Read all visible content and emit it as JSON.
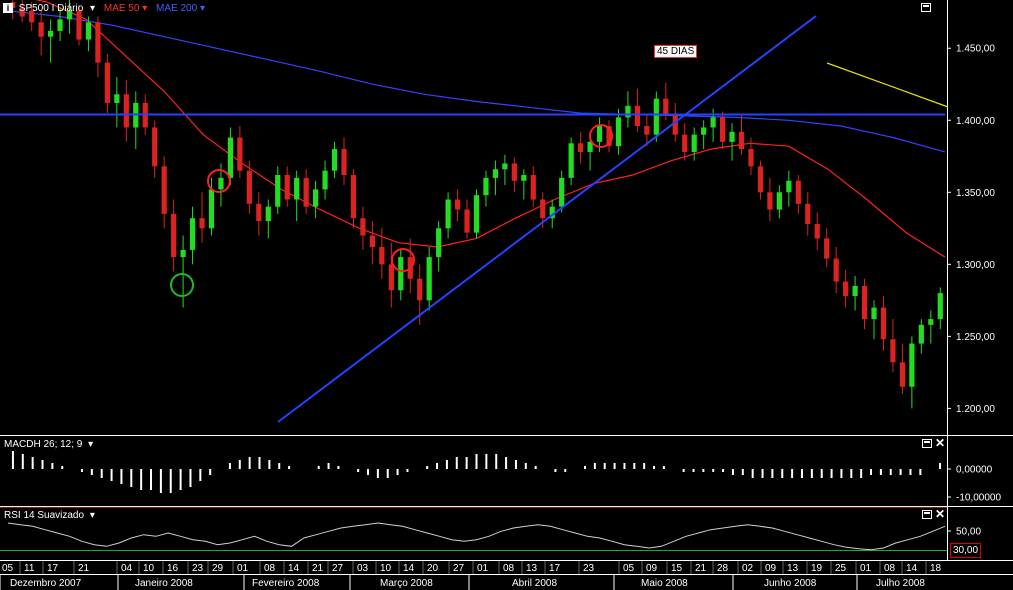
{
  "header": {
    "symbol": "SP500 I Diário",
    "ma1": "MAE 50",
    "ma2": "MAE 200",
    "colors": {
      "symbol": "#ffffff",
      "ma1": "#ff3030",
      "ma2": "#4060ff"
    }
  },
  "price_panel": {
    "annotation": "45 DIAS",
    "y_ticks": [
      "1.450,00",
      "1.400,00",
      "1.350,00",
      "1.300,00",
      "1.250,00",
      "1.200,00"
    ]
  },
  "macd_panel": {
    "title": "MACDH 26; 12; 9",
    "y_ticks": [
      "0,00000",
      "-10,00000"
    ]
  },
  "rsi_panel": {
    "title": "RSI 14 Suavizado",
    "y_ticks": [
      "50,00"
    ],
    "current_value": "30,00"
  },
  "x_axis": {
    "day_labels": [
      "05",
      "11",
      "17",
      "21",
      "04",
      "10",
      "16",
      "23",
      "29",
      "01",
      "08",
      "14",
      "21",
      "27",
      "03",
      "10",
      "14",
      "20",
      "27",
      "01",
      "08",
      "13",
      "17",
      "23",
      "05",
      "09",
      "15",
      "21",
      "28",
      "02",
      "09",
      "13",
      "19",
      "25",
      "01",
      "08",
      "14",
      "18"
    ],
    "month_labels": [
      "Dezembro 2007",
      "Janeiro 2008",
      "Fevereiro 2008",
      "Março 2008",
      "Abril 2008",
      "Maio 2008",
      "Junho 2008",
      "Julho 2008"
    ]
  },
  "chart_data": {
    "type": "candlestick",
    "title": "SP500 I Diário",
    "x_range": [
      "2007-12-03",
      "2008-07-21"
    ],
    "ylim": [
      1185,
      1480
    ],
    "candles_ohlc": [
      [
        1482,
        1488,
        1470,
        1478
      ],
      [
        1478,
        1484,
        1468,
        1472
      ],
      [
        1476,
        1482,
        1462,
        1468
      ],
      [
        1468,
        1476,
        1445,
        1458
      ],
      [
        1458,
        1470,
        1440,
        1462
      ],
      [
        1462,
        1478,
        1455,
        1470
      ],
      [
        1470,
        1484,
        1460,
        1476
      ],
      [
        1476,
        1480,
        1452,
        1456
      ],
      [
        1456,
        1472,
        1448,
        1468
      ],
      [
        1468,
        1472,
        1430,
        1440
      ],
      [
        1440,
        1446,
        1405,
        1412
      ],
      [
        1412,
        1430,
        1395,
        1418
      ],
      [
        1418,
        1428,
        1385,
        1395
      ],
      [
        1395,
        1420,
        1380,
        1412
      ],
      [
        1412,
        1418,
        1390,
        1395
      ],
      [
        1395,
        1400,
        1360,
        1368
      ],
      [
        1368,
        1375,
        1325,
        1335
      ],
      [
        1335,
        1345,
        1295,
        1305
      ],
      [
        1305,
        1320,
        1270,
        1310
      ],
      [
        1310,
        1340,
        1300,
        1332
      ],
      [
        1332,
        1350,
        1315,
        1325
      ],
      [
        1325,
        1360,
        1320,
        1352
      ],
      [
        1352,
        1370,
        1340,
        1360
      ],
      [
        1360,
        1395,
        1355,
        1388
      ],
      [
        1388,
        1396,
        1360,
        1365
      ],
      [
        1365,
        1372,
        1335,
        1342
      ],
      [
        1342,
        1350,
        1320,
        1330
      ],
      [
        1330,
        1345,
        1318,
        1340
      ],
      [
        1340,
        1368,
        1335,
        1362
      ],
      [
        1362,
        1368,
        1340,
        1345
      ],
      [
        1345,
        1365,
        1330,
        1360
      ],
      [
        1360,
        1366,
        1335,
        1340
      ],
      [
        1340,
        1358,
        1332,
        1352
      ],
      [
        1352,
        1372,
        1345,
        1365
      ],
      [
        1365,
        1385,
        1360,
        1380
      ],
      [
        1380,
        1388,
        1355,
        1362
      ],
      [
        1362,
        1366,
        1325,
        1332
      ],
      [
        1332,
        1340,
        1310,
        1320
      ],
      [
        1320,
        1330,
        1300,
        1312
      ],
      [
        1312,
        1325,
        1290,
        1300
      ],
      [
        1300,
        1315,
        1270,
        1282
      ],
      [
        1282,
        1310,
        1275,
        1305
      ],
      [
        1305,
        1318,
        1280,
        1290
      ],
      [
        1290,
        1300,
        1258,
        1275
      ],
      [
        1275,
        1312,
        1268,
        1305
      ],
      [
        1305,
        1330,
        1295,
        1325
      ],
      [
        1325,
        1350,
        1318,
        1345
      ],
      [
        1345,
        1352,
        1330,
        1338
      ],
      [
        1338,
        1345,
        1318,
        1322
      ],
      [
        1322,
        1352,
        1318,
        1348
      ],
      [
        1348,
        1365,
        1340,
        1360
      ],
      [
        1360,
        1372,
        1348,
        1366
      ],
      [
        1366,
        1376,
        1355,
        1370
      ],
      [
        1370,
        1374,
        1350,
        1358
      ],
      [
        1358,
        1366,
        1345,
        1362
      ],
      [
        1362,
        1368,
        1340,
        1345
      ],
      [
        1345,
        1350,
        1325,
        1332
      ],
      [
        1332,
        1345,
        1325,
        1340
      ],
      [
        1340,
        1365,
        1336,
        1360
      ],
      [
        1360,
        1388,
        1355,
        1384
      ],
      [
        1384,
        1392,
        1370,
        1378
      ],
      [
        1378,
        1390,
        1365,
        1385
      ],
      [
        1385,
        1402,
        1378,
        1396
      ],
      [
        1396,
        1400,
        1378,
        1382
      ],
      [
        1382,
        1408,
        1376,
        1402
      ],
      [
        1402,
        1420,
        1395,
        1410
      ],
      [
        1410,
        1422,
        1392,
        1396
      ],
      [
        1396,
        1404,
        1382,
        1390
      ],
      [
        1390,
        1420,
        1385,
        1415
      ],
      [
        1415,
        1426,
        1400,
        1404
      ],
      [
        1404,
        1412,
        1385,
        1390
      ],
      [
        1390,
        1398,
        1372,
        1378
      ],
      [
        1378,
        1395,
        1372,
        1390
      ],
      [
        1390,
        1400,
        1380,
        1395
      ],
      [
        1395,
        1408,
        1385,
        1402
      ],
      [
        1402,
        1406,
        1380,
        1385
      ],
      [
        1385,
        1398,
        1372,
        1392
      ],
      [
        1392,
        1404,
        1376,
        1380
      ],
      [
        1380,
        1388,
        1362,
        1368
      ],
      [
        1368,
        1372,
        1345,
        1350
      ],
      [
        1350,
        1360,
        1330,
        1338
      ],
      [
        1338,
        1355,
        1332,
        1350
      ],
      [
        1350,
        1365,
        1340,
        1358
      ],
      [
        1358,
        1362,
        1335,
        1342
      ],
      [
        1342,
        1350,
        1320,
        1328
      ],
      [
        1328,
        1336,
        1310,
        1318
      ],
      [
        1318,
        1325,
        1298,
        1304
      ],
      [
        1304,
        1312,
        1280,
        1288
      ],
      [
        1288,
        1296,
        1270,
        1278
      ],
      [
        1278,
        1292,
        1268,
        1285
      ],
      [
        1285,
        1290,
        1255,
        1262
      ],
      [
        1262,
        1275,
        1248,
        1270
      ],
      [
        1270,
        1278,
        1240,
        1248
      ],
      [
        1248,
        1262,
        1225,
        1232
      ],
      [
        1232,
        1245,
        1210,
        1215
      ],
      [
        1215,
        1250,
        1200,
        1245
      ],
      [
        1245,
        1262,
        1238,
        1258
      ],
      [
        1258,
        1268,
        1245,
        1262
      ],
      [
        1262,
        1284,
        1255,
        1280
      ]
    ],
    "moving_averages": [
      {
        "name": "MAE 50",
        "color": "#ff2020",
        "values": [
          1488,
          1482,
          1470,
          1445,
          1420,
          1390,
          1370,
          1352,
          1338,
          1325,
          1315,
          1312,
          1318,
          1332,
          1345,
          1356,
          1362,
          1372,
          1380,
          1384,
          1382,
          1366,
          1345,
          1322,
          1305
        ]
      },
      {
        "name": "MAE 200",
        "color": "#3344ff",
        "values": [
          1476,
          1472,
          1466,
          1458,
          1450,
          1442,
          1434,
          1425,
          1418,
          1413,
          1409,
          1405,
          1404,
          1403,
          1402,
          1400,
          1396,
          1388,
          1378
        ]
      }
    ],
    "trendlines": [
      {
        "color": "#2244ff",
        "from": [
          "2008-03-05",
          1185
        ],
        "to": [
          "2008-06-06",
          1476
        ]
      },
      {
        "color": "#2244ff",
        "from": [
          "2007-12-03",
          1404
        ],
        "to": [
          "2008-06-06",
          1404
        ]
      },
      {
        "color": "#e8e000",
        "from": [
          "2008-06-11",
          1445
        ],
        "to": [
          "2008-07-21",
          1413
        ]
      }
    ],
    "circles": [
      {
        "color": "#22bb22",
        "date": "2008-01-22",
        "price": 1283
      },
      {
        "color": "#ff2020",
        "date": "2008-01-29",
        "price": 1357
      },
      {
        "color": "#ff2020",
        "date": "2008-03-11",
        "price": 1300
      },
      {
        "color": "#ff2020",
        "date": "2008-04-24",
        "price": 1390
      }
    ],
    "macd_histogram": [
      6,
      5,
      4,
      3,
      2,
      1,
      0,
      -1,
      -2,
      -3,
      -4,
      -5,
      -6,
      -7,
      -7,
      -8,
      -8,
      -7,
      -6,
      -4,
      -2,
      0,
      2,
      3,
      4,
      4,
      3,
      2,
      1,
      0,
      0,
      1,
      2,
      1,
      0,
      -1,
      -2,
      -3,
      -3,
      -2,
      -1,
      0,
      1,
      2,
      3,
      4,
      4,
      5,
      5,
      5,
      4,
      3,
      2,
      1,
      0,
      -1,
      -1,
      0,
      1,
      2,
      2,
      2,
      2,
      2,
      2,
      1,
      1,
      0,
      -1,
      -1,
      -1,
      -1,
      -1,
      -2,
      -2,
      -3,
      -3,
      -3,
      -3,
      -3,
      -3,
      -3,
      -3,
      -3,
      -3,
      -3,
      -3,
      -2,
      -2,
      -2,
      -2,
      -2,
      -2,
      0,
      2
    ],
    "macd_ylim": [
      -10,
      6
    ],
    "rsi": [
      62,
      60,
      58,
      54,
      50,
      46,
      40,
      36,
      34,
      38,
      44,
      48,
      46,
      50,
      46,
      42,
      40,
      36,
      38,
      42,
      46,
      40,
      36,
      34,
      44,
      48,
      52,
      56,
      58,
      60,
      62,
      60,
      58,
      54,
      50,
      46,
      42,
      40,
      42,
      46,
      52,
      56,
      58,
      60,
      58,
      54,
      50,
      46,
      44,
      40,
      36,
      34,
      32,
      34,
      40,
      46,
      50,
      54,
      56,
      58,
      60,
      58,
      56,
      52,
      48,
      44,
      40,
      36,
      33,
      31,
      30,
      32,
      38,
      42,
      46,
      52,
      58
    ],
    "rsi_ylim": [
      20,
      80
    ]
  }
}
